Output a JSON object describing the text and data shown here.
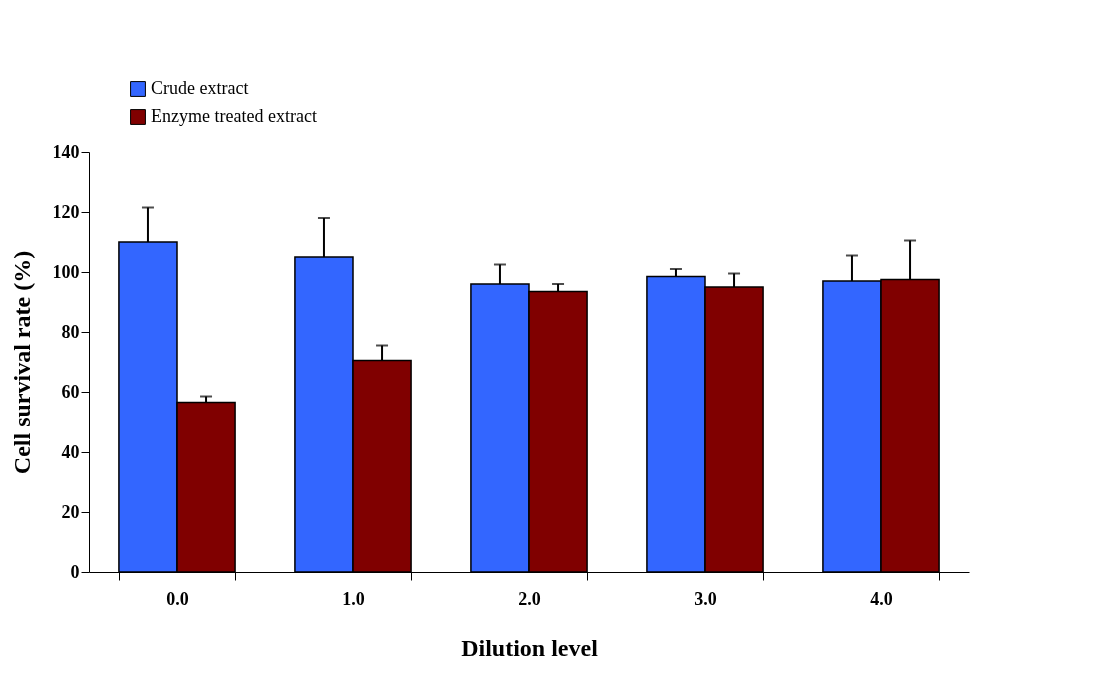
{
  "chart_data": {
    "type": "bar",
    "xlabel": "Dilution level",
    "ylabel": "Cell survival rate (%)",
    "categories": [
      "0.0",
      "1.0",
      "2.0",
      "3.0",
      "4.0"
    ],
    "series": [
      {
        "name": "Crude extract",
        "color": "#3366ff",
        "values": [
          110,
          105,
          96,
          98.5,
          97
        ],
        "errors": [
          [
            110,
            121.5
          ],
          [
            105,
            118
          ],
          [
            96,
            102.5
          ],
          [
            98.5,
            101
          ],
          [
            97,
            105.5
          ]
        ]
      },
      {
        "name": "Enzyme treated extract",
        "color": "#800000",
        "values": [
          56.5,
          70.5,
          93.5,
          95,
          97.5
        ],
        "errors": [
          [
            56.5,
            58.5
          ],
          [
            70.5,
            75.5
          ],
          [
            93.5,
            96
          ],
          [
            95,
            99.5
          ],
          [
            97.5,
            110.5
          ]
        ]
      }
    ],
    "ylim": [
      0,
      140
    ],
    "yticks": [
      0,
      20,
      40,
      60,
      80,
      100,
      120,
      140
    ],
    "grid": false,
    "legend": "top left"
  }
}
